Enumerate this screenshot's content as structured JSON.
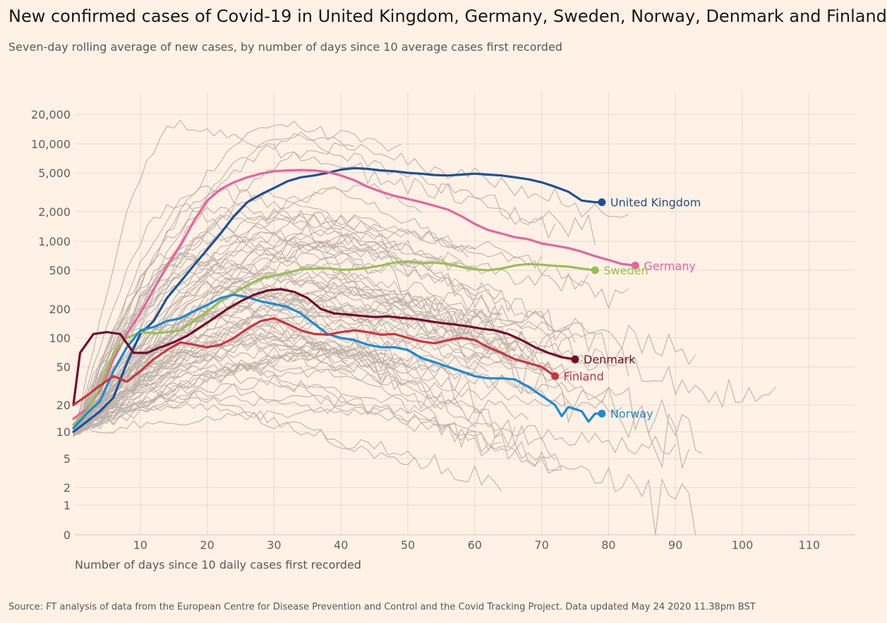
{
  "chart_data": {
    "type": "line",
    "title": "New confirmed cases of Covid-19 in United Kingdom, Germany, Sweden, Norway, Denmark and Finland",
    "subtitle": "Seven-day rolling average of new cases, by number of days since 10 average cases first recorded",
    "xlabel": "Number of days since 10 daily cases first recorded",
    "ylabel": "",
    "y_scale": "log",
    "xlim": [
      0,
      118
    ],
    "ylim": [
      0,
      35000
    ],
    "grid": true,
    "legend": "direct labels at line ends",
    "x_ticks": [
      "10",
      "20",
      "30",
      "40",
      "50",
      "60",
      "70",
      "80",
      "90",
      "100",
      "110"
    ],
    "y_ticks": [
      {
        "value": 0,
        "label": "0"
      },
      {
        "value": 1,
        "label": "1"
      },
      {
        "value": 2,
        "label": "2"
      },
      {
        "value": 5,
        "label": "5"
      },
      {
        "value": 10,
        "label": "10"
      },
      {
        "value": 20,
        "label": "20"
      },
      {
        "value": 50,
        "label": "50"
      },
      {
        "value": 100,
        "label": "100"
      },
      {
        "value": 200,
        "label": "200"
      },
      {
        "value": 500,
        "label": "500"
      },
      {
        "value": 1000,
        "label": "1,000"
      },
      {
        "value": 2000,
        "label": "2,000"
      },
      {
        "value": 5000,
        "label": "5,000"
      },
      {
        "value": 10000,
        "label": "10,000"
      },
      {
        "value": 20000,
        "label": "20,000"
      }
    ],
    "background_color": "#bab0a8",
    "series": [
      {
        "name": "United Kingdom",
        "color": "#1b5196",
        "points": [
          [
            0,
            10
          ],
          [
            2,
            13
          ],
          [
            4,
            17
          ],
          [
            6,
            24
          ],
          [
            8,
            55
          ],
          [
            10,
            110
          ],
          [
            12,
            150
          ],
          [
            14,
            260
          ],
          [
            16,
            380
          ],
          [
            18,
            560
          ],
          [
            20,
            820
          ],
          [
            22,
            1200
          ],
          [
            24,
            1800
          ],
          [
            26,
            2500
          ],
          [
            28,
            3000
          ],
          [
            30,
            3500
          ],
          [
            32,
            4100
          ],
          [
            34,
            4500
          ],
          [
            36,
            4700
          ],
          [
            38,
            5000
          ],
          [
            40,
            5400
          ],
          [
            42,
            5600
          ],
          [
            44,
            5500
          ],
          [
            46,
            5300
          ],
          [
            48,
            5200
          ],
          [
            50,
            5000
          ],
          [
            52,
            4900
          ],
          [
            54,
            4750
          ],
          [
            56,
            4700
          ],
          [
            58,
            4800
          ],
          [
            60,
            4900
          ],
          [
            62,
            4800
          ],
          [
            64,
            4700
          ],
          [
            66,
            4500
          ],
          [
            68,
            4300
          ],
          [
            70,
            4000
          ],
          [
            72,
            3600
          ],
          [
            74,
            3200
          ],
          [
            76,
            2600
          ],
          [
            78,
            2500
          ],
          [
            79,
            2500
          ]
        ]
      },
      {
        "name": "Germany",
        "color": "#e9639c",
        "points": [
          [
            0,
            14
          ],
          [
            2,
            18
          ],
          [
            4,
            28
          ],
          [
            6,
            60
          ],
          [
            8,
            110
          ],
          [
            10,
            180
          ],
          [
            12,
            320
          ],
          [
            14,
            550
          ],
          [
            16,
            900
          ],
          [
            18,
            1600
          ],
          [
            20,
            2600
          ],
          [
            22,
            3400
          ],
          [
            24,
            4000
          ],
          [
            26,
            4500
          ],
          [
            28,
            4900
          ],
          [
            30,
            5200
          ],
          [
            32,
            5300
          ],
          [
            34,
            5350
          ],
          [
            36,
            5300
          ],
          [
            38,
            5100
          ],
          [
            40,
            4700
          ],
          [
            42,
            4200
          ],
          [
            44,
            3600
          ],
          [
            46,
            3200
          ],
          [
            48,
            2900
          ],
          [
            50,
            2700
          ],
          [
            52,
            2500
          ],
          [
            54,
            2300
          ],
          [
            56,
            2100
          ],
          [
            58,
            1800
          ],
          [
            60,
            1500
          ],
          [
            62,
            1300
          ],
          [
            64,
            1200
          ],
          [
            66,
            1100
          ],
          [
            68,
            1050
          ],
          [
            70,
            950
          ],
          [
            72,
            900
          ],
          [
            74,
            850
          ],
          [
            76,
            780
          ],
          [
            78,
            700
          ],
          [
            80,
            640
          ],
          [
            82,
            580
          ],
          [
            84,
            560
          ]
        ]
      },
      {
        "name": "Sweden",
        "color": "#98bf55",
        "points": [
          [
            0,
            12
          ],
          [
            2,
            17
          ],
          [
            4,
            30
          ],
          [
            6,
            70
          ],
          [
            8,
            100
          ],
          [
            10,
            115
          ],
          [
            12,
            112
          ],
          [
            14,
            115
          ],
          [
            16,
            120
          ],
          [
            18,
            150
          ],
          [
            20,
            190
          ],
          [
            22,
            240
          ],
          [
            24,
            290
          ],
          [
            26,
            350
          ],
          [
            28,
            410
          ],
          [
            30,
            440
          ],
          [
            32,
            470
          ],
          [
            34,
            510
          ],
          [
            36,
            520
          ],
          [
            38,
            525
          ],
          [
            40,
            505
          ],
          [
            42,
            510
          ],
          [
            44,
            530
          ],
          [
            46,
            560
          ],
          [
            48,
            600
          ],
          [
            50,
            620
          ],
          [
            52,
            590
          ],
          [
            54,
            600
          ],
          [
            56,
            580
          ],
          [
            58,
            540
          ],
          [
            60,
            510
          ],
          [
            62,
            500
          ],
          [
            64,
            520
          ],
          [
            66,
            560
          ],
          [
            68,
            580
          ],
          [
            70,
            570
          ],
          [
            72,
            555
          ],
          [
            74,
            545
          ],
          [
            76,
            520
          ],
          [
            78,
            500
          ]
        ]
      },
      {
        "name": "Norway",
        "color": "#1c8bd6",
        "points": [
          [
            0,
            11
          ],
          [
            2,
            16
          ],
          [
            4,
            22
          ],
          [
            6,
            45
          ],
          [
            8,
            80
          ],
          [
            10,
            120
          ],
          [
            12,
            130
          ],
          [
            14,
            150
          ],
          [
            16,
            160
          ],
          [
            18,
            190
          ],
          [
            20,
            220
          ],
          [
            22,
            260
          ],
          [
            24,
            280
          ],
          [
            26,
            265
          ],
          [
            28,
            240
          ],
          [
            30,
            225
          ],
          [
            32,
            210
          ],
          [
            34,
            180
          ],
          [
            36,
            140
          ],
          [
            38,
            110
          ],
          [
            40,
            100
          ],
          [
            42,
            95
          ],
          [
            44,
            85
          ],
          [
            46,
            80
          ],
          [
            48,
            80
          ],
          [
            50,
            75
          ],
          [
            52,
            62
          ],
          [
            54,
            56
          ],
          [
            56,
            50
          ],
          [
            58,
            45
          ],
          [
            60,
            40
          ],
          [
            62,
            38
          ],
          [
            64,
            38
          ],
          [
            66,
            37
          ],
          [
            68,
            31
          ],
          [
            70,
            25
          ],
          [
            72,
            20
          ],
          [
            73,
            15
          ],
          [
            74,
            19
          ],
          [
            76,
            17
          ],
          [
            77,
            13
          ],
          [
            78,
            16
          ],
          [
            79,
            16
          ]
        ]
      },
      {
        "name": "Denmark",
        "color": "#750c2b",
        "points": [
          [
            0,
            20
          ],
          [
            1,
            70
          ],
          [
            3,
            110
          ],
          [
            5,
            115
          ],
          [
            7,
            110
          ],
          [
            9,
            70
          ],
          [
            11,
            70
          ],
          [
            13,
            80
          ],
          [
            15,
            90
          ],
          [
            17,
            105
          ],
          [
            19,
            130
          ],
          [
            21,
            160
          ],
          [
            23,
            200
          ],
          [
            25,
            240
          ],
          [
            27,
            280
          ],
          [
            29,
            310
          ],
          [
            31,
            320
          ],
          [
            33,
            300
          ],
          [
            35,
            260
          ],
          [
            37,
            200
          ],
          [
            39,
            180
          ],
          [
            41,
            175
          ],
          [
            43,
            170
          ],
          [
            45,
            165
          ],
          [
            47,
            168
          ],
          [
            49,
            162
          ],
          [
            51,
            158
          ],
          [
            53,
            150
          ],
          [
            55,
            143
          ],
          [
            57,
            138
          ],
          [
            59,
            132
          ],
          [
            61,
            125
          ],
          [
            63,
            120
          ],
          [
            65,
            110
          ],
          [
            67,
            95
          ],
          [
            69,
            80
          ],
          [
            71,
            70
          ],
          [
            73,
            63
          ],
          [
            75,
            60
          ]
        ]
      },
      {
        "name": "Finland",
        "color": "#cc3440",
        "points": [
          [
            0,
            20
          ],
          [
            2,
            25
          ],
          [
            4,
            32
          ],
          [
            6,
            40
          ],
          [
            8,
            35
          ],
          [
            10,
            45
          ],
          [
            12,
            60
          ],
          [
            14,
            75
          ],
          [
            16,
            90
          ],
          [
            18,
            85
          ],
          [
            20,
            80
          ],
          [
            22,
            85
          ],
          [
            24,
            100
          ],
          [
            26,
            125
          ],
          [
            28,
            150
          ],
          [
            30,
            160
          ],
          [
            32,
            140
          ],
          [
            34,
            120
          ],
          [
            36,
            110
          ],
          [
            38,
            108
          ],
          [
            40,
            115
          ],
          [
            42,
            120
          ],
          [
            44,
            115
          ],
          [
            46,
            108
          ],
          [
            48,
            110
          ],
          [
            50,
            100
          ],
          [
            52,
            92
          ],
          [
            54,
            88
          ],
          [
            56,
            95
          ],
          [
            58,
            100
          ],
          [
            60,
            95
          ],
          [
            62,
            80
          ],
          [
            64,
            70
          ],
          [
            66,
            60
          ],
          [
            68,
            55
          ],
          [
            70,
            50
          ],
          [
            72,
            40
          ]
        ]
      }
    ],
    "labels": [
      {
        "series": "United Kingdom",
        "text": "United Kingdom"
      },
      {
        "series": "Germany",
        "text": "Germany"
      },
      {
        "series": "Sweden",
        "text": "Sweden"
      },
      {
        "series": "Denmark",
        "text": "Denmark"
      },
      {
        "series": "Finland",
        "text": "Finland"
      },
      {
        "series": "Norway",
        "text": "Norway"
      }
    ]
  },
  "source": "Source: FT analysis of data from the European Centre for Disease Prevention and Control and the Covid Tracking Project. Data updated May 24 2020 11.38pm BST"
}
